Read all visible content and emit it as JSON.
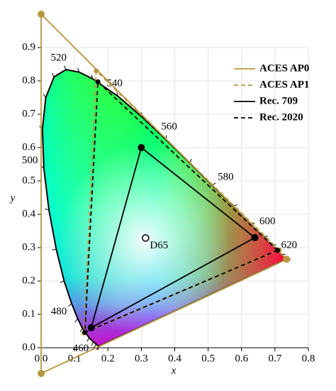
{
  "chart_data": {
    "type": "line",
    "x_label": "x",
    "y_label": "y",
    "xlim": [
      0,
      0.8
    ],
    "ylim": [
      0,
      0.9
    ],
    "xticks": [
      {
        "value": 0,
        "label": "0.0"
      },
      0.1,
      0.2,
      0.3,
      0.4,
      0.5,
      0.6,
      0.7,
      0.8
    ],
    "yticks": [
      {
        "value": 0,
        "label": "0.0"
      },
      0.1,
      0.2,
      0.3,
      0.4,
      0.5,
      0.6,
      0.7,
      0.8,
      0.9
    ],
    "grid": true,
    "legend": "upper right",
    "locus": {
      "color": "#000000",
      "label_color": "#1a2aa8",
      "labels": [
        null,
        null,
        null,
        null,
        "460",
        null,
        null,
        "480",
        null,
        null,
        null,
        "500",
        null,
        null,
        null,
        "520",
        null,
        null,
        "540",
        null,
        "560",
        null,
        "580",
        null,
        "600",
        null,
        "620",
        null,
        null
      ],
      "x": [
        0.1741,
        0.1714,
        0.1644,
        0.1566,
        0.144,
        0.1241,
        0.1096,
        0.0913,
        0.0687,
        0.0454,
        0.0235,
        0.0082,
        0.0039,
        0.0139,
        0.0389,
        0.0743,
        0.1142,
        0.1547,
        0.2296,
        0.3016,
        0.3731,
        0.4441,
        0.5125,
        0.5752,
        0.627,
        0.6658,
        0.6915,
        0.719,
        0.7347
      ],
      "y": [
        0.005,
        0.0051,
        0.0109,
        0.0177,
        0.0297,
        0.0578,
        0.0868,
        0.1327,
        0.2007,
        0.295,
        0.4127,
        0.5384,
        0.6548,
        0.7502,
        0.812,
        0.8338,
        0.8262,
        0.8059,
        0.7543,
        0.6923,
        0.6245,
        0.5547,
        0.4866,
        0.4242,
        0.3725,
        0.334,
        0.3083,
        0.2809,
        0.2653
      ]
    },
    "white_point": {
      "label": "D65",
      "x": 0.3127,
      "y": 0.329
    },
    "series": [
      {
        "name": "ACES AP0",
        "color": "#b8963e",
        "dashed": false,
        "x": [
          0.7347,
          0,
          0.0001
        ],
        "values": [
          0.2653,
          1,
          -0.077
        ]
      },
      {
        "name": "ACES AP1",
        "color": "#b8963e",
        "dashed": true,
        "x": [
          0.713,
          0.165,
          0.128
        ],
        "values": [
          0.293,
          0.83,
          0.044
        ]
      },
      {
        "name": "Rec. 709",
        "color": "#000000",
        "dashed": false,
        "x": [
          0.64,
          0.3,
          0.15
        ],
        "values": [
          0.33,
          0.6,
          0.06
        ]
      },
      {
        "name": "Rec. 2020",
        "color": "#000000",
        "dashed": true,
        "x": [
          0.708,
          0.17,
          0.131
        ],
        "values": [
          0.292,
          0.797,
          0.046
        ]
      }
    ]
  }
}
